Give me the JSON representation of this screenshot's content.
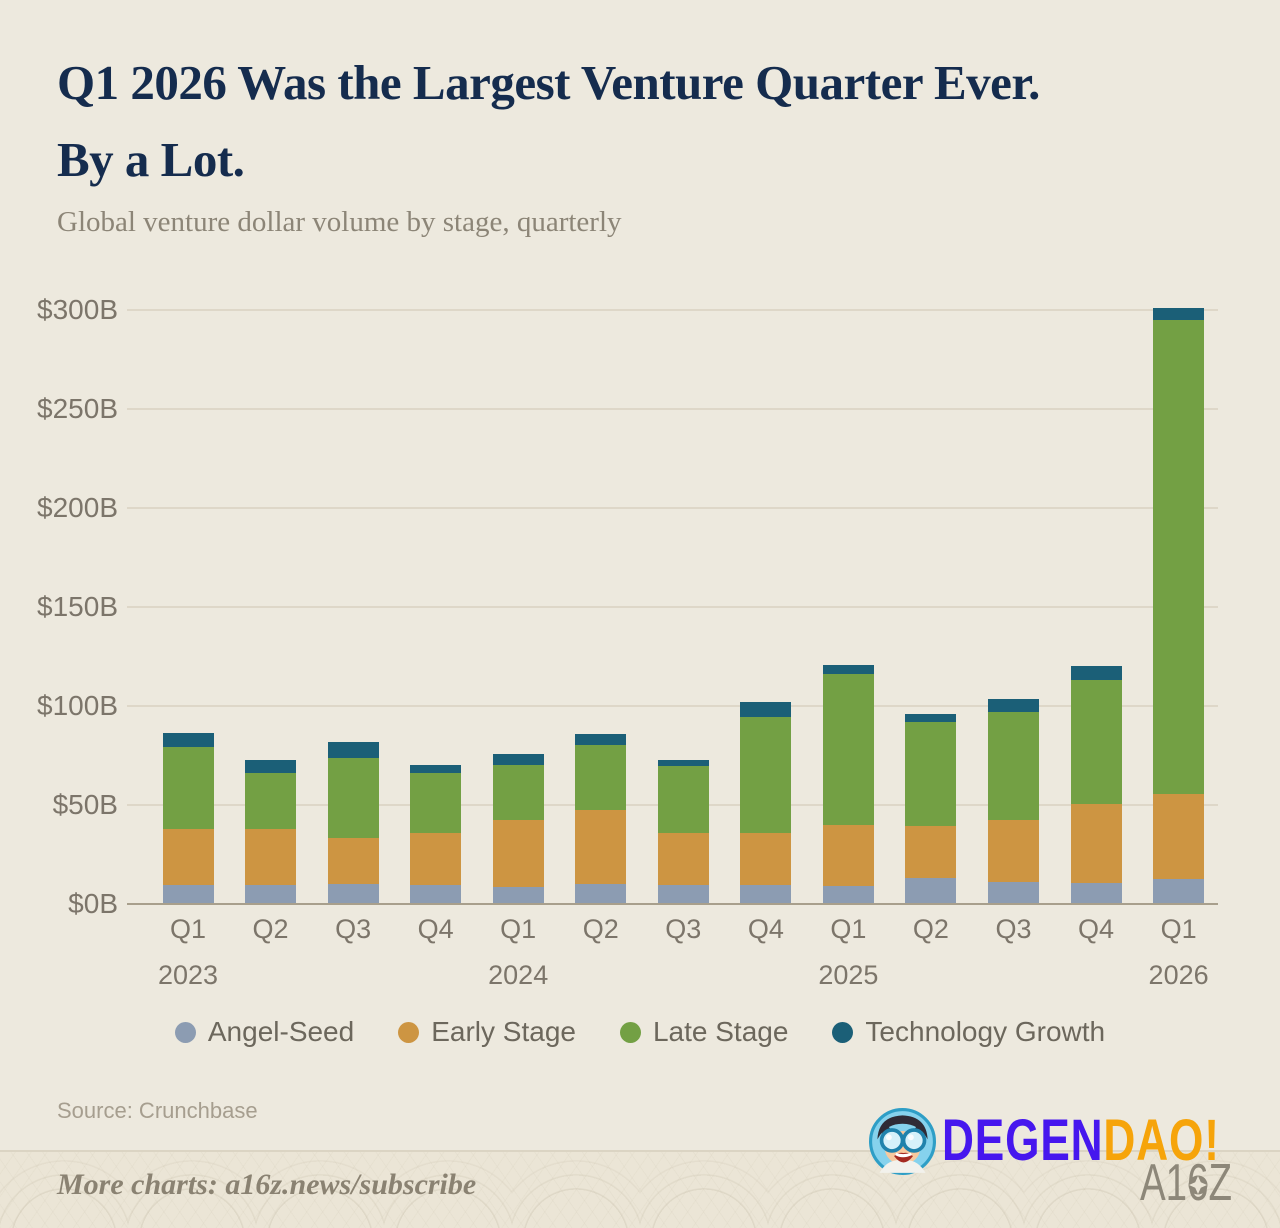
{
  "header": {
    "title_line1": "Q1 2026 Was the Largest Venture Quarter Ever.",
    "title_line2": "By a Lot.",
    "subtitle": "Global venture dollar volume by stage, quarterly",
    "title_color": "#152C4E"
  },
  "chart_data": {
    "type": "bar",
    "stacked": true,
    "title": "Q1 2026 Was the Largest Venture Quarter Ever. By a Lot.",
    "subtitle": "Global venture dollar volume by stage, quarterly",
    "unit": "USD billions",
    "categories": [
      "Q1 2023",
      "Q2 2023",
      "Q3 2023",
      "Q4 2023",
      "Q1 2024",
      "Q2 2024",
      "Q3 2024",
      "Q4 2024",
      "Q1 2025",
      "Q2 2025",
      "Q3 2025",
      "Q4 2025",
      "Q1 2026"
    ],
    "x_quarters": [
      "Q1",
      "Q2",
      "Q3",
      "Q4",
      "Q1",
      "Q2",
      "Q3",
      "Q4",
      "Q1",
      "Q2",
      "Q3",
      "Q4",
      "Q1"
    ],
    "x_years": [
      {
        "index": 0,
        "label": "2023"
      },
      {
        "index": 4,
        "label": "2024"
      },
      {
        "index": 8,
        "label": "2025"
      },
      {
        "index": 12,
        "label": "2026"
      }
    ],
    "series": [
      {
        "name": "Angel-Seed",
        "color": "#8C9CB2",
        "values": [
          9.5,
          9.5,
          10,
          9.5,
          8.5,
          10,
          9.5,
          9.5,
          9,
          13,
          11,
          10.5,
          12.5
        ]
      },
      {
        "name": "Early Stage",
        "color": "#CD9542",
        "values": [
          28.5,
          28.5,
          23.5,
          26.5,
          34,
          37.5,
          26.5,
          26.5,
          31,
          26.5,
          31.5,
          40,
          43
        ]
      },
      {
        "name": "Late Stage",
        "color": "#73A044",
        "values": [
          41.5,
          28,
          40.5,
          30,
          27.5,
          33,
          33.5,
          58.5,
          76,
          52.5,
          54.5,
          62.5,
          239.5
        ]
      },
      {
        "name": "Technology Growth",
        "color": "#1B5F77",
        "values": [
          7,
          7,
          8,
          4,
          6,
          5.5,
          3.5,
          7.5,
          4.5,
          4,
          6.5,
          7,
          6
        ]
      }
    ],
    "y_ticks": [
      "$0B",
      "$50B",
      "$100B",
      "$150B",
      "$200B",
      "$250B",
      "$300B"
    ],
    "ylim": [
      0,
      300
    ],
    "grid": true,
    "legend_position": "bottom",
    "colors": {
      "background": "#EDE9DE",
      "gridline": "#DED7C8",
      "axis_line": "#A89F8C",
      "axis_text": "#7C756A",
      "legend_text": "#6C675C"
    }
  },
  "footer": {
    "source": "Source: Crunchbase",
    "more_charts": "More charts: a16z.news/subscribe",
    "brand": {
      "degen": "DEGEN",
      "dao": "DAO!",
      "degen_color": "#4617EE",
      "dao_color": "#F6A40A",
      "a16z": "A16Z",
      "a16z_color": "#8D8779"
    }
  }
}
